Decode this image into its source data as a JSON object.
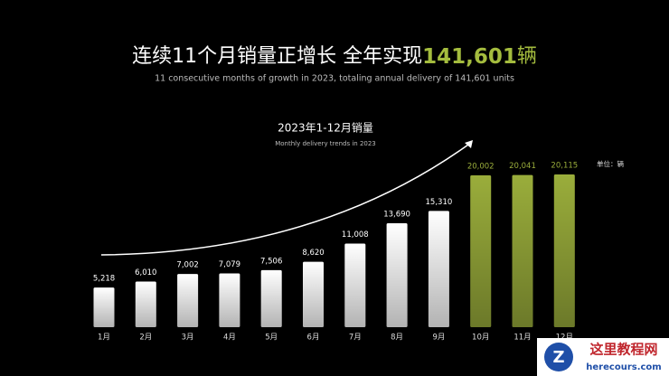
{
  "chart_data": {
    "type": "bar",
    "headline": [
      "连续11个月销量正增长 全年实现",
      "141,601",
      "辆"
    ],
    "headline_highlight_color": "#a4bc3e",
    "subtitle": "11 consecutive months of growth in 2023, totaling annual delivery of 141,601 units",
    "title": "2023年1-12月销量",
    "chart_subtitle": "Monthly delivery trends in 2023",
    "unit": "单位：辆",
    "categories": [
      "1月",
      "2月",
      "3月",
      "4月",
      "5月",
      "6月",
      "7月",
      "8月",
      "9月",
      "10月",
      "11月",
      "12月"
    ],
    "values": [
      5218,
      6010,
      7002,
      7079,
      7506,
      8620,
      11008,
      13690,
      15310,
      20002,
      20041,
      20115
    ],
    "value_labels": [
      "5,218",
      "6,010",
      "7,002",
      "7,079",
      "7,506",
      "8,620",
      "11,008",
      "13,690",
      "15,310",
      "20,002",
      "20,041",
      "20,115"
    ],
    "colors": [
      "#ffffff",
      "#ffffff",
      "#ffffff",
      "#ffffff",
      "#ffffff",
      "#ffffff",
      "#ffffff",
      "#ffffff",
      "#ffffff",
      "#9aad3b",
      "#9aad3b",
      "#9aad3b"
    ]
  },
  "watermark": {
    "name": "这里教程网",
    "url": "herecours.com"
  }
}
